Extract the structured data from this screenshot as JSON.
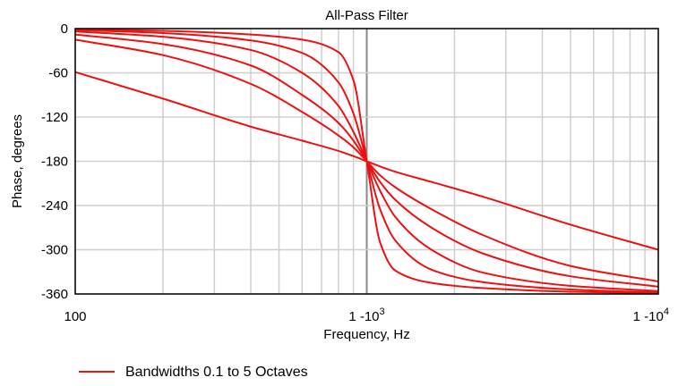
{
  "chart_data": {
    "type": "line",
    "title": "All-Pass Filter",
    "xlabel": "Frequency, Hz",
    "ylabel": "Phase, degrees",
    "x_scale": "log",
    "xlim": [
      100,
      10000
    ],
    "ylim": [
      -360,
      0
    ],
    "x_ticks": [
      {
        "value": 100,
        "label": "100",
        "sup": ""
      },
      {
        "value": 1000,
        "label": "1 -10",
        "sup": "3"
      },
      {
        "value": 10000,
        "label": "1 -10",
        "sup": "4"
      }
    ],
    "y_ticks": [
      0,
      -60,
      -120,
      -180,
      -240,
      -300,
      -360
    ],
    "grid": true,
    "center_frequency": 1000,
    "line_color": "#ee1111",
    "legend": {
      "label": "Bandwidths 0.1 to 5 Octaves",
      "position": "bottom-left"
    },
    "x": [
      100,
      200,
      400,
      600,
      800,
      900,
      1000,
      1111,
      1250,
      1667,
      2500,
      5000,
      10000
    ],
    "series": [
      {
        "bandwidth_octaves": 0.1,
        "values": [
          -1,
          -3,
          -8,
          -15,
          -32,
          -70,
          -180,
          -290,
          -328,
          -345,
          -352,
          -357,
          -359
        ]
      },
      {
        "bandwidth_octaves": 0.5,
        "values": [
          -2,
          -6,
          -16,
          -33,
          -73,
          -115,
          -180,
          -245,
          -287,
          -327,
          -344,
          -354,
          -358
        ]
      },
      {
        "bandwidth_octaves": 1,
        "values": [
          -4,
          -11,
          -29,
          -60,
          -105,
          -140,
          -180,
          -220,
          -255,
          -300,
          -331,
          -349,
          -356
        ]
      },
      {
        "bandwidth_octaves": 2,
        "values": [
          -8,
          -21,
          -50,
          -90,
          -128,
          -152,
          -180,
          -208,
          -232,
          -270,
          -305,
          -336,
          -350
        ]
      },
      {
        "bandwidth_octaves": 3,
        "values": [
          -15,
          -36,
          -75,
          -113,
          -145,
          -161,
          -180,
          -199,
          -215,
          -245,
          -280,
          -322,
          -343
        ]
      },
      {
        "bandwidth_octaves": 5,
        "values": [
          -59,
          -95,
          -133,
          -152,
          -166,
          -173,
          -180,
          -187,
          -194,
          -208,
          -228,
          -266,
          -300
        ]
      }
    ]
  }
}
